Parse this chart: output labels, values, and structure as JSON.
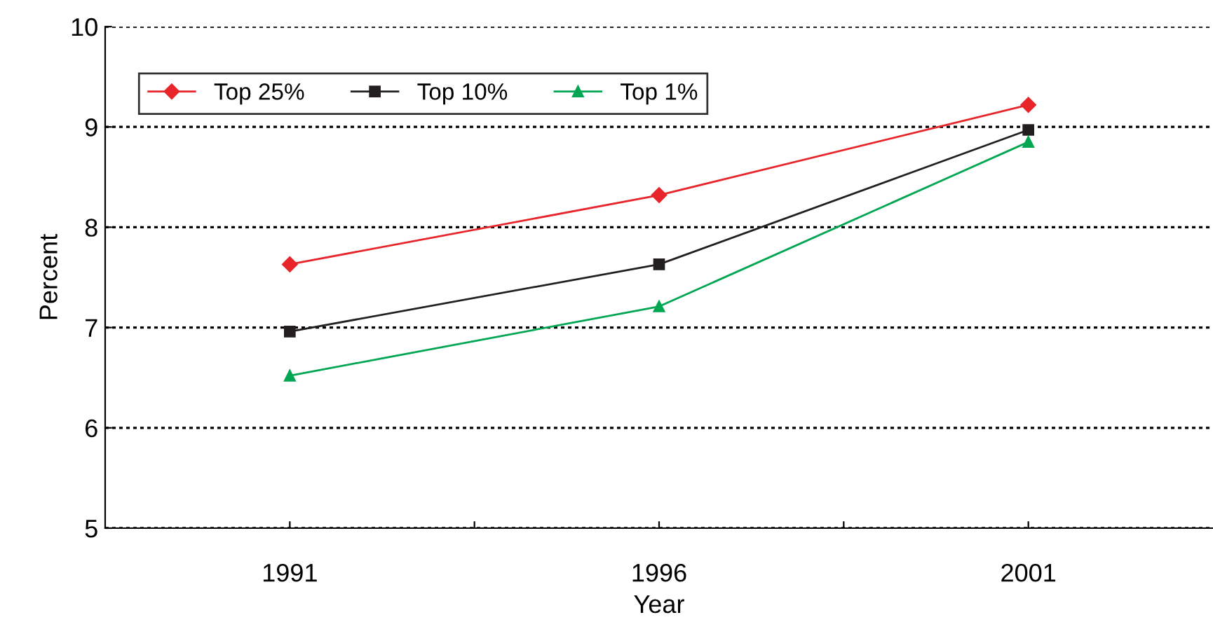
{
  "chart_data": {
    "type": "line",
    "xlabel": "Year",
    "ylabel": "Percent",
    "x": [
      1991,
      1996,
      2001
    ],
    "series": [
      {
        "name": "Top 25%",
        "color": "#e8252a",
        "marker": "diamond",
        "values": [
          7.63,
          8.32,
          9.22
        ]
      },
      {
        "name": "Top 10%",
        "color": "#231f20",
        "marker": "square",
        "values": [
          6.96,
          7.63,
          8.97
        ]
      },
      {
        "name": "Top 1%",
        "color": "#00a651",
        "marker": "triangle",
        "values": [
          6.52,
          7.21,
          8.85
        ]
      }
    ],
    "xlim": [
      1988.5,
      2003.5
    ],
    "xticks": [
      1991,
      {
        "value": 1993.5,
        "label": null
      },
      1996,
      {
        "value": 1998.5,
        "label": null
      },
      2001
    ],
    "ylim": [
      5,
      10
    ],
    "yticks": [
      5,
      6,
      7,
      8,
      9,
      10
    ],
    "grid": "y",
    "legend": "top left",
    "line_style": "solid"
  }
}
